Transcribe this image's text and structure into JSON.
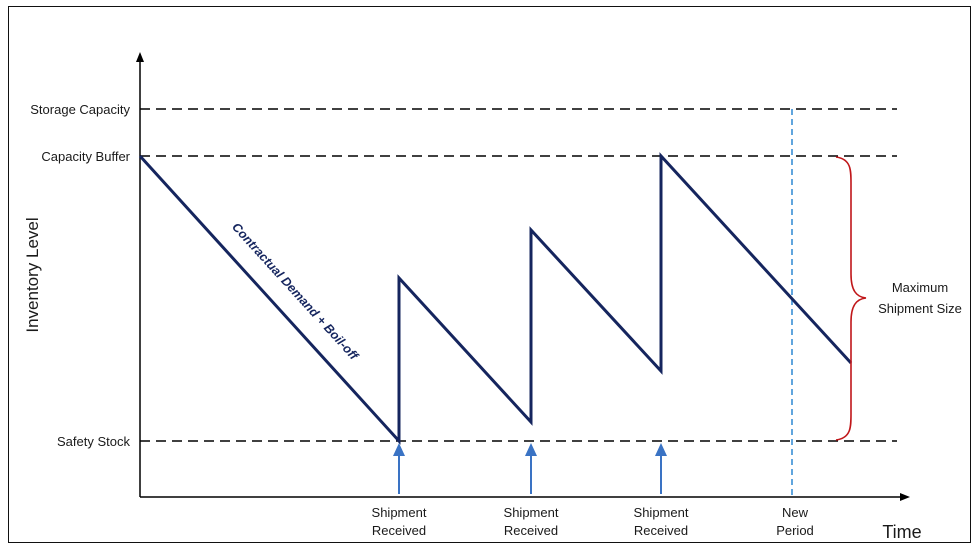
{
  "levels": {
    "storage_capacity": "Storage Capacity",
    "capacity_buffer": "Capacity Buffer",
    "safety_stock": "Safety Stock"
  },
  "axes": {
    "y_label": "Inventory Level",
    "x_label": "Time"
  },
  "demand_label": "Contractual Demand + Boil-off",
  "shipments": [
    {
      "line1": "Shipment",
      "line2": "Received"
    },
    {
      "line1": "Shipment",
      "line2": "Received"
    },
    {
      "line1": "Shipment",
      "line2": "Received"
    }
  ],
  "new_period": {
    "line1": "New",
    "line2": "Period"
  },
  "max_shipment": {
    "line1": "Maximum",
    "line2": "Shipment Size"
  },
  "colors": {
    "inventory_line": "#15255e",
    "arrow": "#3a73c4",
    "period_line": "#3a8fd6",
    "brace": "#c0171a"
  }
}
